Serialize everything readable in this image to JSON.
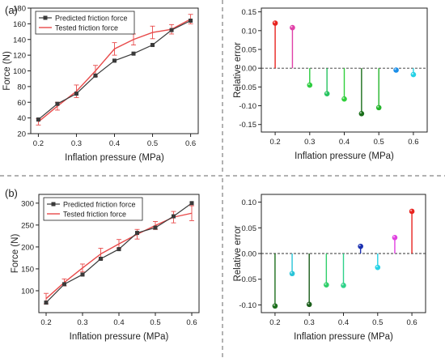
{
  "panels": [
    {
      "label": "(a)"
    },
    {
      "label": "(b)"
    }
  ],
  "chart_data": [
    {
      "type": "line",
      "panel": "(a)",
      "xlabel": "Inflation pressure (MPa)",
      "ylabel": "Force (N)",
      "xlim": [
        0.18,
        0.62
      ],
      "ylim": [
        20,
        180
      ],
      "xticks": [
        "0.2",
        "0.3",
        "0.4",
        "0.5",
        "0.6"
      ],
      "yticks": [
        "20",
        "40",
        "60",
        "80",
        "100",
        "120",
        "140",
        "160",
        "180"
      ],
      "x": [
        0.2,
        0.25,
        0.3,
        0.35,
        0.4,
        0.45,
        0.5,
        0.55,
        0.6
      ],
      "legend_position": "top-left",
      "series": [
        {
          "name": "Predicted friction force",
          "color": "#3a3a3a",
          "marker": "square",
          "values": [
            38,
            58,
            71,
            94,
            113,
            122,
            133,
            152,
            164
          ]
        },
        {
          "name": "Tested friction force",
          "color": "#e84a4a",
          "marker": "none",
          "values": [
            35,
            55,
            74,
            100,
            128,
            140,
            149,
            153,
            166
          ],
          "error": [
            4,
            5,
            8,
            7,
            8,
            7,
            8,
            6,
            6
          ]
        }
      ]
    },
    {
      "type": "stem",
      "panel": "(a)",
      "xlabel": "Inflation pressure (MPa)",
      "ylabel": "Relative error",
      "xlim": [
        0.16,
        0.64
      ],
      "ylim": [
        -0.17,
        0.16
      ],
      "xticks": [
        "0.2",
        "0.3",
        "0.4",
        "0.5",
        "0.6"
      ],
      "yticks": [
        "0.15",
        "0.10",
        "0.05",
        "0.00",
        "-0.05",
        "-0.10",
        "-0.15"
      ],
      "x": [
        0.2,
        0.25,
        0.3,
        0.35,
        0.4,
        0.45,
        0.5,
        0.55,
        0.6
      ],
      "values": [
        0.12,
        0.108,
        -0.045,
        -0.068,
        -0.082,
        -0.121,
        -0.105,
        -0.005,
        -0.017
      ],
      "colors": [
        "#e8231f",
        "#e040a8",
        "#2ecc40",
        "#27c460",
        "#2fcf3a",
        "#1a6e1a",
        "#25b52c",
        "#1a8ee8",
        "#26d2e6"
      ]
    },
    {
      "type": "line",
      "panel": "(b)",
      "xlabel": "Inflation pressure (MPa)",
      "ylabel": "Force (N)",
      "xlim": [
        0.18,
        0.62
      ],
      "ylim": [
        50,
        320
      ],
      "xticks": [
        "0.2",
        "0.3",
        "0.4",
        "0.5",
        "0.6"
      ],
      "yticks": [
        "100",
        "150",
        "200",
        "250",
        "300"
      ],
      "x": [
        0.2,
        0.25,
        0.3,
        0.35,
        0.4,
        0.45,
        0.5,
        0.55,
        0.6
      ],
      "legend_position": "top-left",
      "series": [
        {
          "name": "Predicted friction force",
          "color": "#3a3a3a",
          "marker": "square",
          "values": [
            73,
            115,
            137,
            173,
            195,
            232,
            244,
            270,
            300
          ]
        },
        {
          "name": "Tested friction force",
          "color": "#e84a4a",
          "marker": "none",
          "values": [
            82,
            119,
            152,
            184,
            207,
            229,
            249,
            268,
            277
          ],
          "error": [
            12,
            8,
            9,
            13,
            10,
            11,
            9,
            13,
            17
          ]
        }
      ]
    },
    {
      "type": "stem",
      "panel": "(b)",
      "xlabel": "Inflation pressure (MPa)",
      "ylabel": "Relative error",
      "xlim": [
        0.16,
        0.64
      ],
      "ylim": [
        -0.115,
        0.115
      ],
      "xticks": [
        "0.2",
        "0.3",
        "0.4",
        "0.5",
        "0.6"
      ],
      "yticks": [
        "0.10",
        "0.05",
        "0.00",
        "-0.05",
        "-0.10"
      ],
      "x": [
        0.2,
        0.25,
        0.3,
        0.35,
        0.4,
        0.45,
        0.5,
        0.55,
        0.6
      ],
      "values": [
        -0.102,
        -0.039,
        -0.099,
        -0.061,
        -0.062,
        0.014,
        -0.027,
        0.031,
        0.082
      ],
      "colors": [
        "#1c6e1c",
        "#29c4d8",
        "#1a5e1a",
        "#2fcf6a",
        "#2fd28a",
        "#1a2fb0",
        "#26d2e6",
        "#e040e0",
        "#e8231f"
      ]
    }
  ]
}
